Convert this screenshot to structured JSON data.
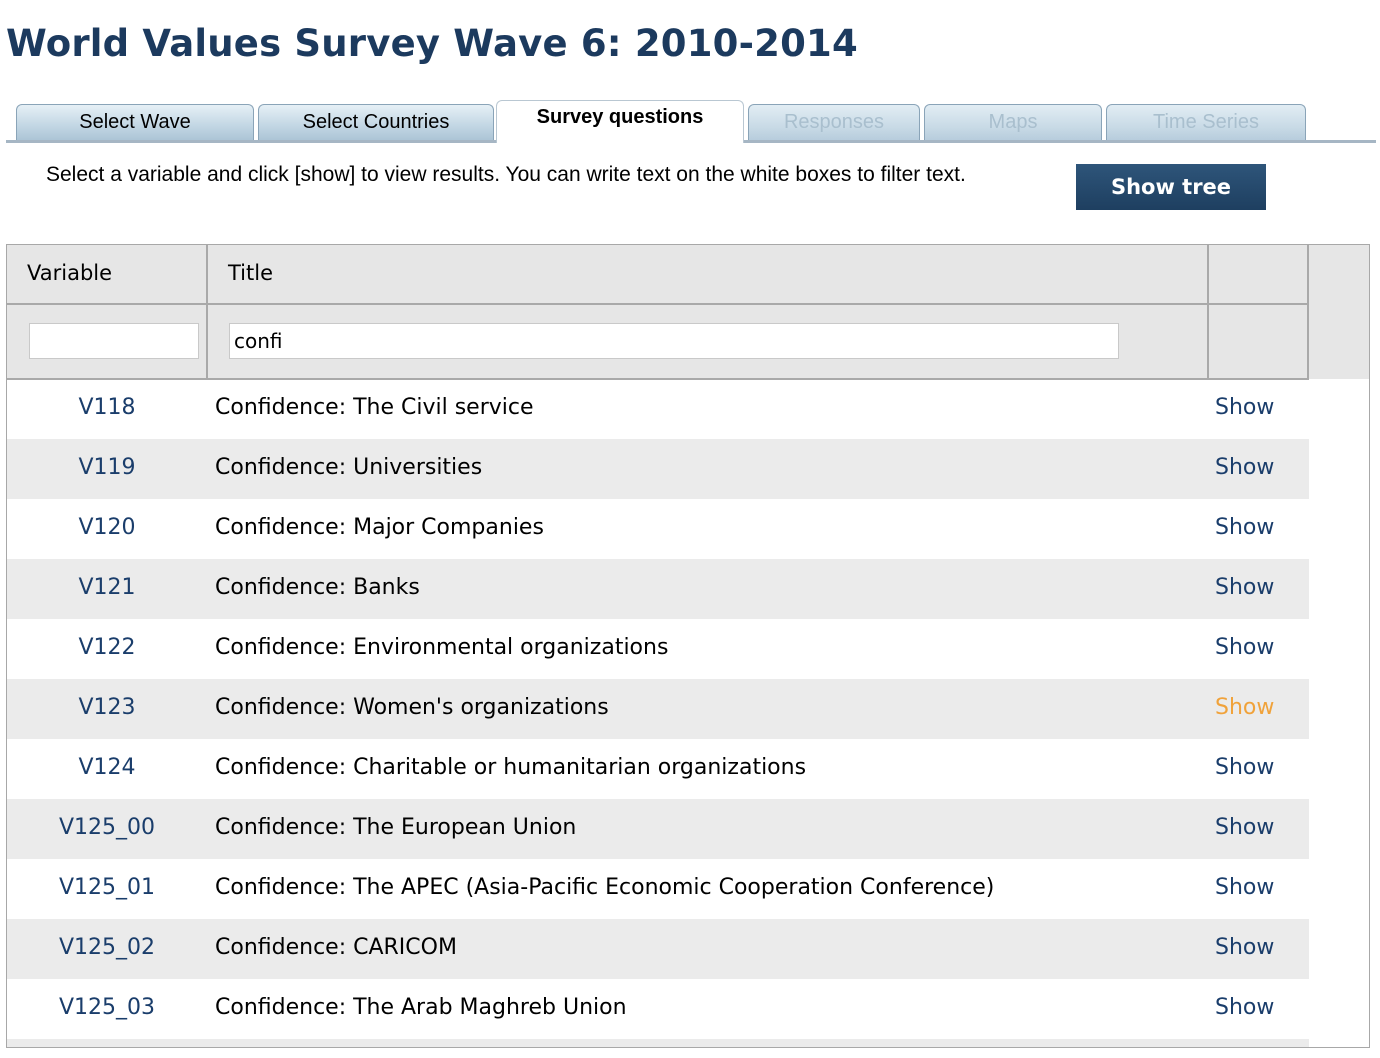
{
  "page": {
    "title": "World Values Survey Wave 6: 2010-2014"
  },
  "tabs": [
    {
      "label": "Select Wave",
      "state": "normal"
    },
    {
      "label": "Select Countries",
      "state": "normal"
    },
    {
      "label": "Survey questions",
      "state": "active"
    },
    {
      "label": "Responses",
      "state": "disabled"
    },
    {
      "label": "Maps",
      "state": "disabled"
    },
    {
      "label": "Time Series",
      "state": "disabled"
    }
  ],
  "instructions": "Select a variable and click [show] to view results. You can write text on the white boxes to filter text.",
  "show_tree_label": "Show tree",
  "table": {
    "headers": {
      "variable": "Variable",
      "title": "Title"
    },
    "filters": {
      "variable": "",
      "title": "confi"
    },
    "rows": [
      {
        "variable": "V118",
        "title": "Confidence: The Civil service",
        "action": "Show"
      },
      {
        "variable": "V119",
        "title": "Confidence: Universities",
        "action": "Show"
      },
      {
        "variable": "V120",
        "title": "Confidence: Major Companies",
        "action": "Show"
      },
      {
        "variable": "V121",
        "title": "Confidence: Banks",
        "action": "Show"
      },
      {
        "variable": "V122",
        "title": "Confidence: Environmental organizations",
        "action": "Show"
      },
      {
        "variable": "V123",
        "title": "Confidence: Women's organizations",
        "action": "Show",
        "hovered": true
      },
      {
        "variable": "V124",
        "title": "Confidence: Charitable or humanitarian organizations",
        "action": "Show"
      },
      {
        "variable": "V125_00",
        "title": "Confidence: The European Union",
        "action": "Show"
      },
      {
        "variable": "V125_01",
        "title": "Confidence: The APEC (Asia-Pacific Economic Cooperation Conference)",
        "action": "Show"
      },
      {
        "variable": "V125_02",
        "title": "Confidence: CARICOM",
        "action": "Show"
      },
      {
        "variable": "V125_03",
        "title": "Confidence: The Arab Maghreb Union",
        "action": "Show"
      }
    ]
  },
  "colors": {
    "title": "#1c3a5e",
    "link": "#1a3d6b",
    "link_hover": "#f0a23a",
    "button": "#1e3f60"
  }
}
